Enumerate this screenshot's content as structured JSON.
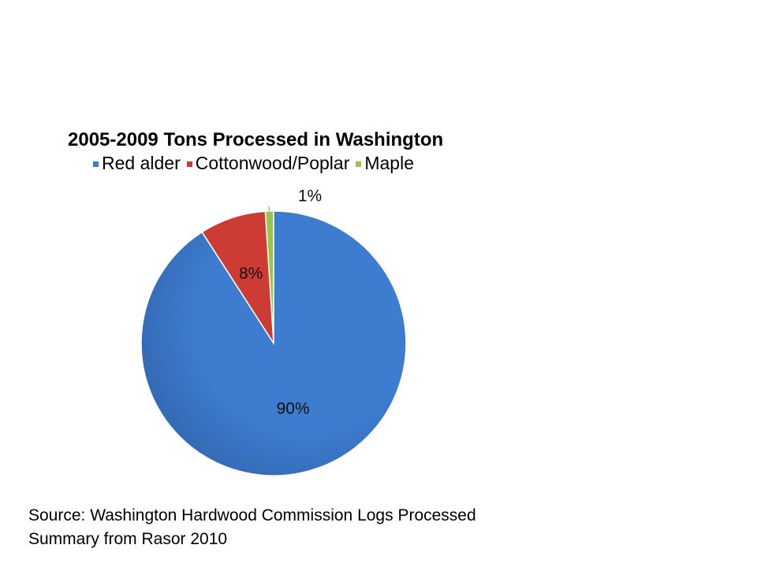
{
  "chart_data": {
    "type": "pie",
    "title": "2005-2009 Tons Processed in Washington",
    "categories": [
      "Red alder",
      "Cottonwood/Poplar",
      "Maple"
    ],
    "values": [
      90,
      8,
      1
    ],
    "labels": [
      "90%",
      "8%",
      "1%"
    ],
    "colors": [
      "#3b7bd0",
      "#cc3b34",
      "#97c74b"
    ],
    "legend_position": "top",
    "start": "12 o'clock, counter-clockwise"
  },
  "source": {
    "line1": "Source: Washington Hardwood Commission Logs Processed",
    "line2": "Summary from Rasor 2010"
  }
}
